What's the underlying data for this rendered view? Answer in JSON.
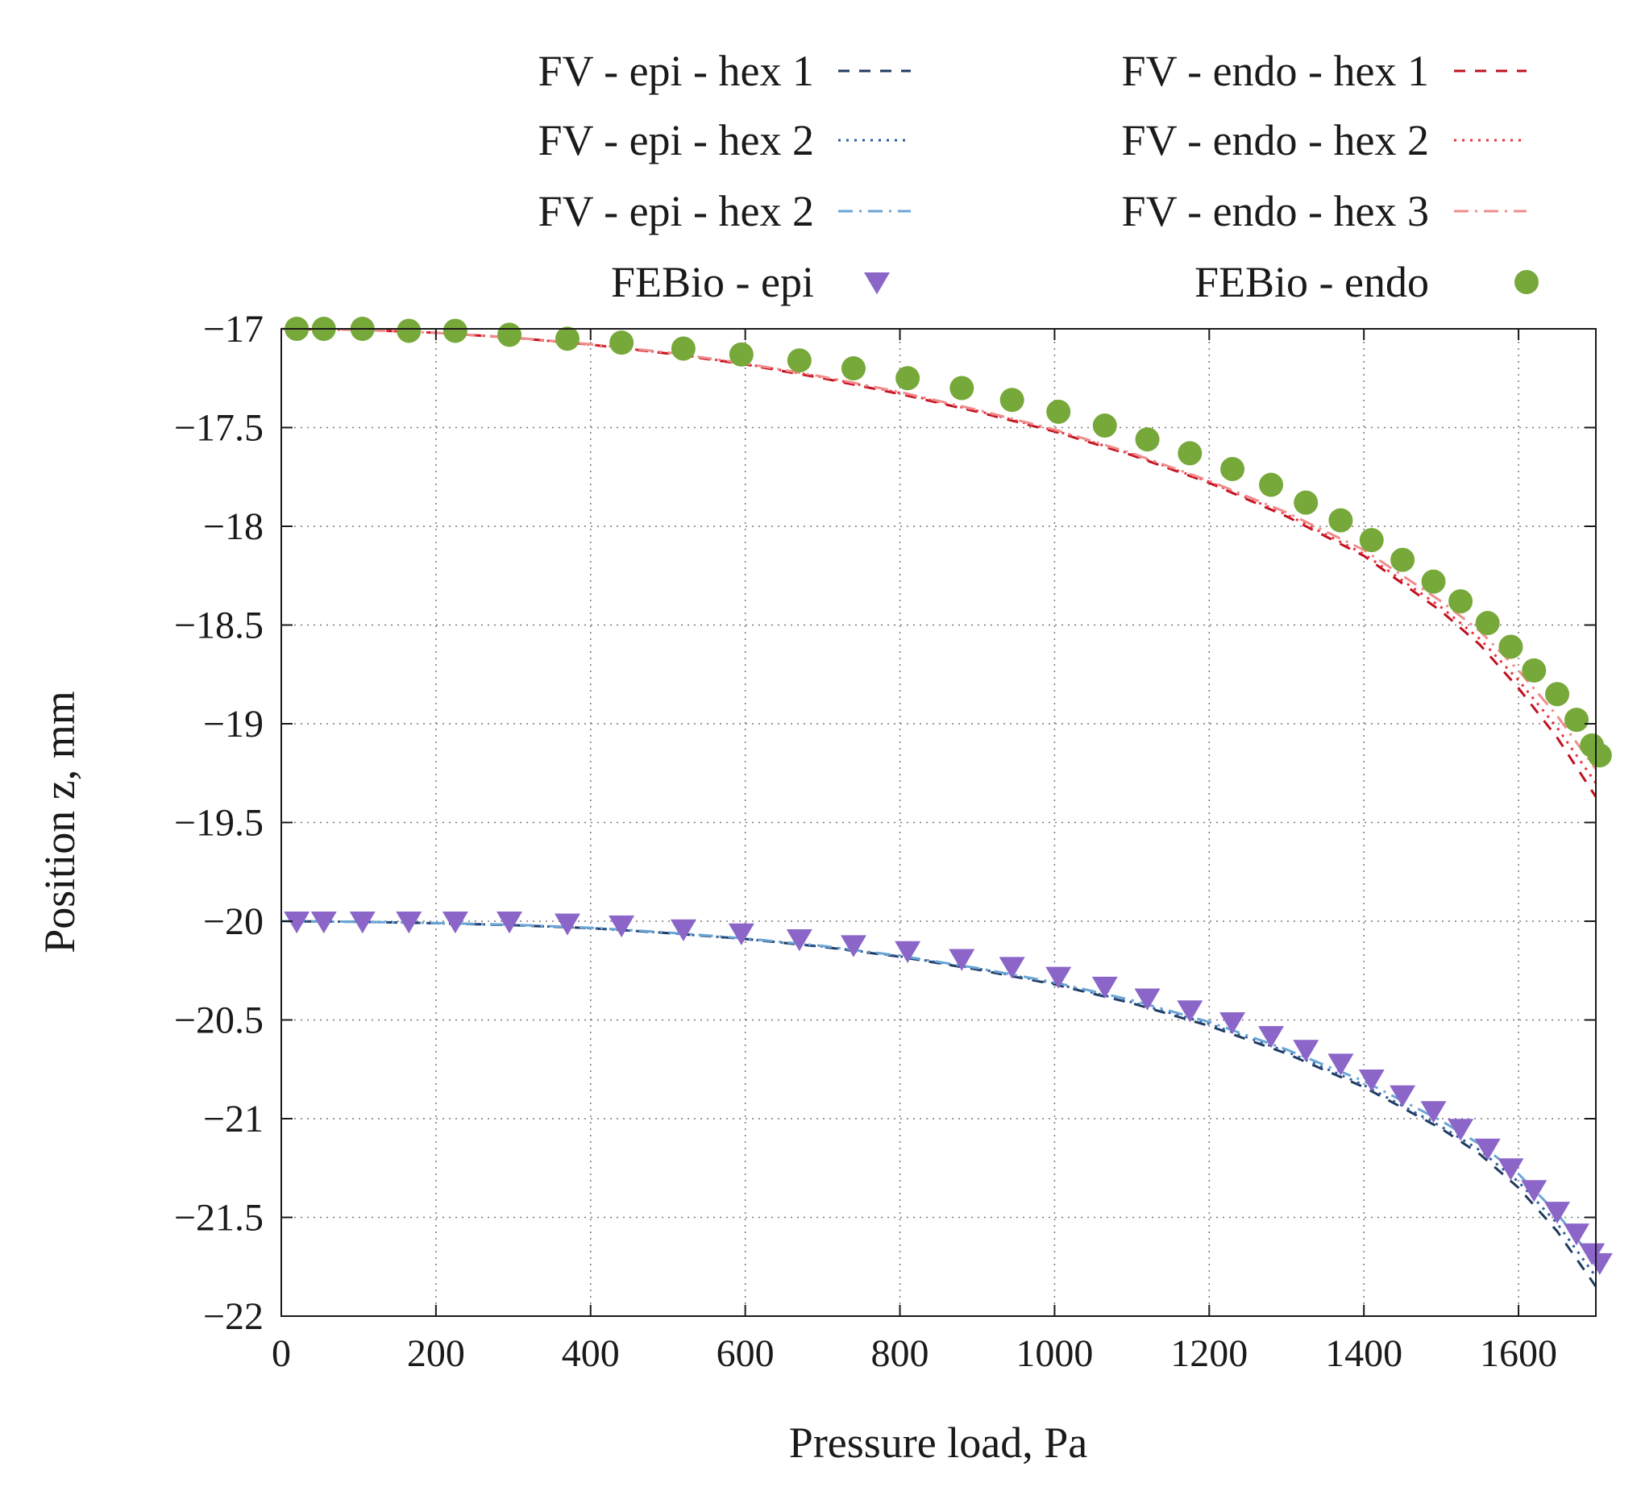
{
  "chart_data": {
    "type": "line",
    "xlabel": "Pressure load, Pa",
    "ylabel": "Position z, mm",
    "xlim": [
      0,
      1700
    ],
    "ylim": [
      -22,
      -17
    ],
    "x_ticks": [
      0,
      200,
      400,
      600,
      800,
      1000,
      1200,
      1400,
      1600
    ],
    "y_ticks": [
      -17,
      -17.5,
      -18,
      -18.5,
      -19,
      -19.5,
      -20,
      -20.5,
      -21,
      -21.5,
      -22
    ],
    "x_tick_labels": [
      "0",
      "200",
      "400",
      "600",
      "800",
      "1000",
      "1200",
      "1400",
      "1600"
    ],
    "y_tick_labels": [
      "−17",
      "−17.5",
      "−18",
      "−18.5",
      "−19",
      "−19.5",
      "−20",
      "−20.5",
      "−21",
      "−21.5",
      "−22"
    ],
    "grid": true,
    "legend_position": "top",
    "series": [
      {
        "name": "FV - epi - hex 1",
        "style": "dashed",
        "color": "#1f3a5f",
        "x": [
          0,
          100,
          200,
          300,
          400,
          500,
          600,
          700,
          800,
          900,
          1000,
          1100,
          1200,
          1300,
          1400,
          1500,
          1550,
          1600,
          1650,
          1700
        ],
        "y": [
          -20.0,
          -20.003,
          -20.01,
          -20.02,
          -20.035,
          -20.06,
          -20.09,
          -20.13,
          -20.18,
          -20.245,
          -20.32,
          -20.415,
          -20.53,
          -20.67,
          -20.84,
          -21.05,
          -21.18,
          -21.35,
          -21.57,
          -21.85
        ]
      },
      {
        "name": "FV - epi - hex 2",
        "style": "dotted",
        "color": "#2e5c9a",
        "x": [
          0,
          100,
          200,
          300,
          400,
          500,
          600,
          700,
          800,
          900,
          1000,
          1100,
          1200,
          1300,
          1400,
          1500,
          1550,
          1600,
          1650,
          1700
        ],
        "y": [
          -20.0,
          -20.003,
          -20.01,
          -20.02,
          -20.035,
          -20.06,
          -20.09,
          -20.128,
          -20.178,
          -20.24,
          -20.315,
          -20.41,
          -20.52,
          -20.66,
          -20.83,
          -21.04,
          -21.16,
          -21.32,
          -21.53,
          -21.8
        ]
      },
      {
        "name": "FV - epi - hex 2",
        "style": "dashdot",
        "color": "#6aa5d6",
        "x": [
          0,
          100,
          200,
          300,
          400,
          500,
          600,
          700,
          800,
          900,
          1000,
          1100,
          1200,
          1300,
          1400,
          1500,
          1550,
          1600,
          1650,
          1700
        ],
        "y": [
          -20.0,
          -20.003,
          -20.009,
          -20.018,
          -20.033,
          -20.057,
          -20.087,
          -20.125,
          -20.175,
          -20.237,
          -20.31,
          -20.4,
          -20.51,
          -20.65,
          -20.81,
          -21.01,
          -21.13,
          -21.28,
          -21.48,
          -21.73
        ]
      },
      {
        "name": "FV - endo - hex 1",
        "style": "dashed",
        "color": "#c0101f",
        "x": [
          0,
          100,
          200,
          300,
          400,
          500,
          600,
          700,
          800,
          900,
          1000,
          1100,
          1200,
          1300,
          1400,
          1500,
          1550,
          1600,
          1650,
          1700
        ],
        "y": [
          -17.0,
          -17.005,
          -17.02,
          -17.045,
          -17.08,
          -17.125,
          -17.18,
          -17.25,
          -17.33,
          -17.42,
          -17.52,
          -17.64,
          -17.78,
          -17.95,
          -18.15,
          -18.43,
          -18.6,
          -18.82,
          -19.07,
          -19.37
        ]
      },
      {
        "name": "FV - endo - hex 2",
        "style": "dotted",
        "color": "#e8333f",
        "x": [
          0,
          100,
          200,
          300,
          400,
          500,
          600,
          700,
          800,
          900,
          1000,
          1100,
          1200,
          1300,
          1400,
          1500,
          1550,
          1600,
          1650,
          1700
        ],
        "y": [
          -17.0,
          -17.005,
          -17.02,
          -17.045,
          -17.08,
          -17.123,
          -17.178,
          -17.245,
          -17.325,
          -17.415,
          -17.515,
          -17.635,
          -17.775,
          -17.94,
          -18.14,
          -18.41,
          -18.57,
          -18.78,
          -19.02,
          -19.3
        ]
      },
      {
        "name": "FV - endo - hex 3",
        "style": "dashdot",
        "color": "#f08c8c",
        "x": [
          0,
          100,
          200,
          300,
          400,
          500,
          600,
          700,
          800,
          900,
          1000,
          1100,
          1200,
          1300,
          1400,
          1500,
          1550,
          1600,
          1650,
          1700
        ],
        "y": [
          -17.0,
          -17.005,
          -17.02,
          -17.044,
          -17.078,
          -17.12,
          -17.175,
          -17.242,
          -17.32,
          -17.41,
          -17.51,
          -17.63,
          -17.77,
          -17.93,
          -18.12,
          -18.38,
          -18.53,
          -18.73,
          -18.96,
          -19.23
        ]
      },
      {
        "name": "FEBio - epi",
        "style": "marker-triangle",
        "color": "#8b66c8",
        "x": [
          20,
          55,
          105,
          165,
          225,
          295,
          370,
          440,
          520,
          595,
          670,
          740,
          810,
          880,
          945,
          1005,
          1065,
          1120,
          1175,
          1230,
          1280,
          1325,
          1370,
          1410,
          1450,
          1490,
          1525,
          1560,
          1590,
          1620,
          1650,
          1675,
          1695,
          1705
        ],
        "y": [
          -20.0,
          -20.0,
          -20.0,
          -20.0,
          -20.0,
          -20.0,
          -20.01,
          -20.02,
          -20.04,
          -20.06,
          -20.09,
          -20.12,
          -20.15,
          -20.19,
          -20.23,
          -20.28,
          -20.33,
          -20.39,
          -20.45,
          -20.51,
          -20.58,
          -20.65,
          -20.72,
          -20.8,
          -20.88,
          -20.96,
          -21.05,
          -21.15,
          -21.25,
          -21.36,
          -21.47,
          -21.58,
          -21.68,
          -21.73
        ]
      },
      {
        "name": "FEBio - endo",
        "style": "marker-circle",
        "color": "#77a83a",
        "x": [
          20,
          55,
          105,
          165,
          225,
          295,
          370,
          440,
          520,
          595,
          670,
          740,
          810,
          880,
          945,
          1005,
          1065,
          1120,
          1175,
          1230,
          1280,
          1325,
          1370,
          1410,
          1450,
          1490,
          1525,
          1560,
          1590,
          1620,
          1650,
          1675,
          1695,
          1705
        ],
        "y": [
          -17.0,
          -17.0,
          -17.0,
          -17.01,
          -17.01,
          -17.03,
          -17.05,
          -17.07,
          -17.1,
          -17.13,
          -17.16,
          -17.2,
          -17.25,
          -17.3,
          -17.36,
          -17.42,
          -17.49,
          -17.56,
          -17.63,
          -17.71,
          -17.79,
          -17.88,
          -17.97,
          -18.07,
          -18.17,
          -18.28,
          -18.38,
          -18.49,
          -18.61,
          -18.73,
          -18.85,
          -18.98,
          -19.11,
          -19.16
        ]
      }
    ]
  }
}
